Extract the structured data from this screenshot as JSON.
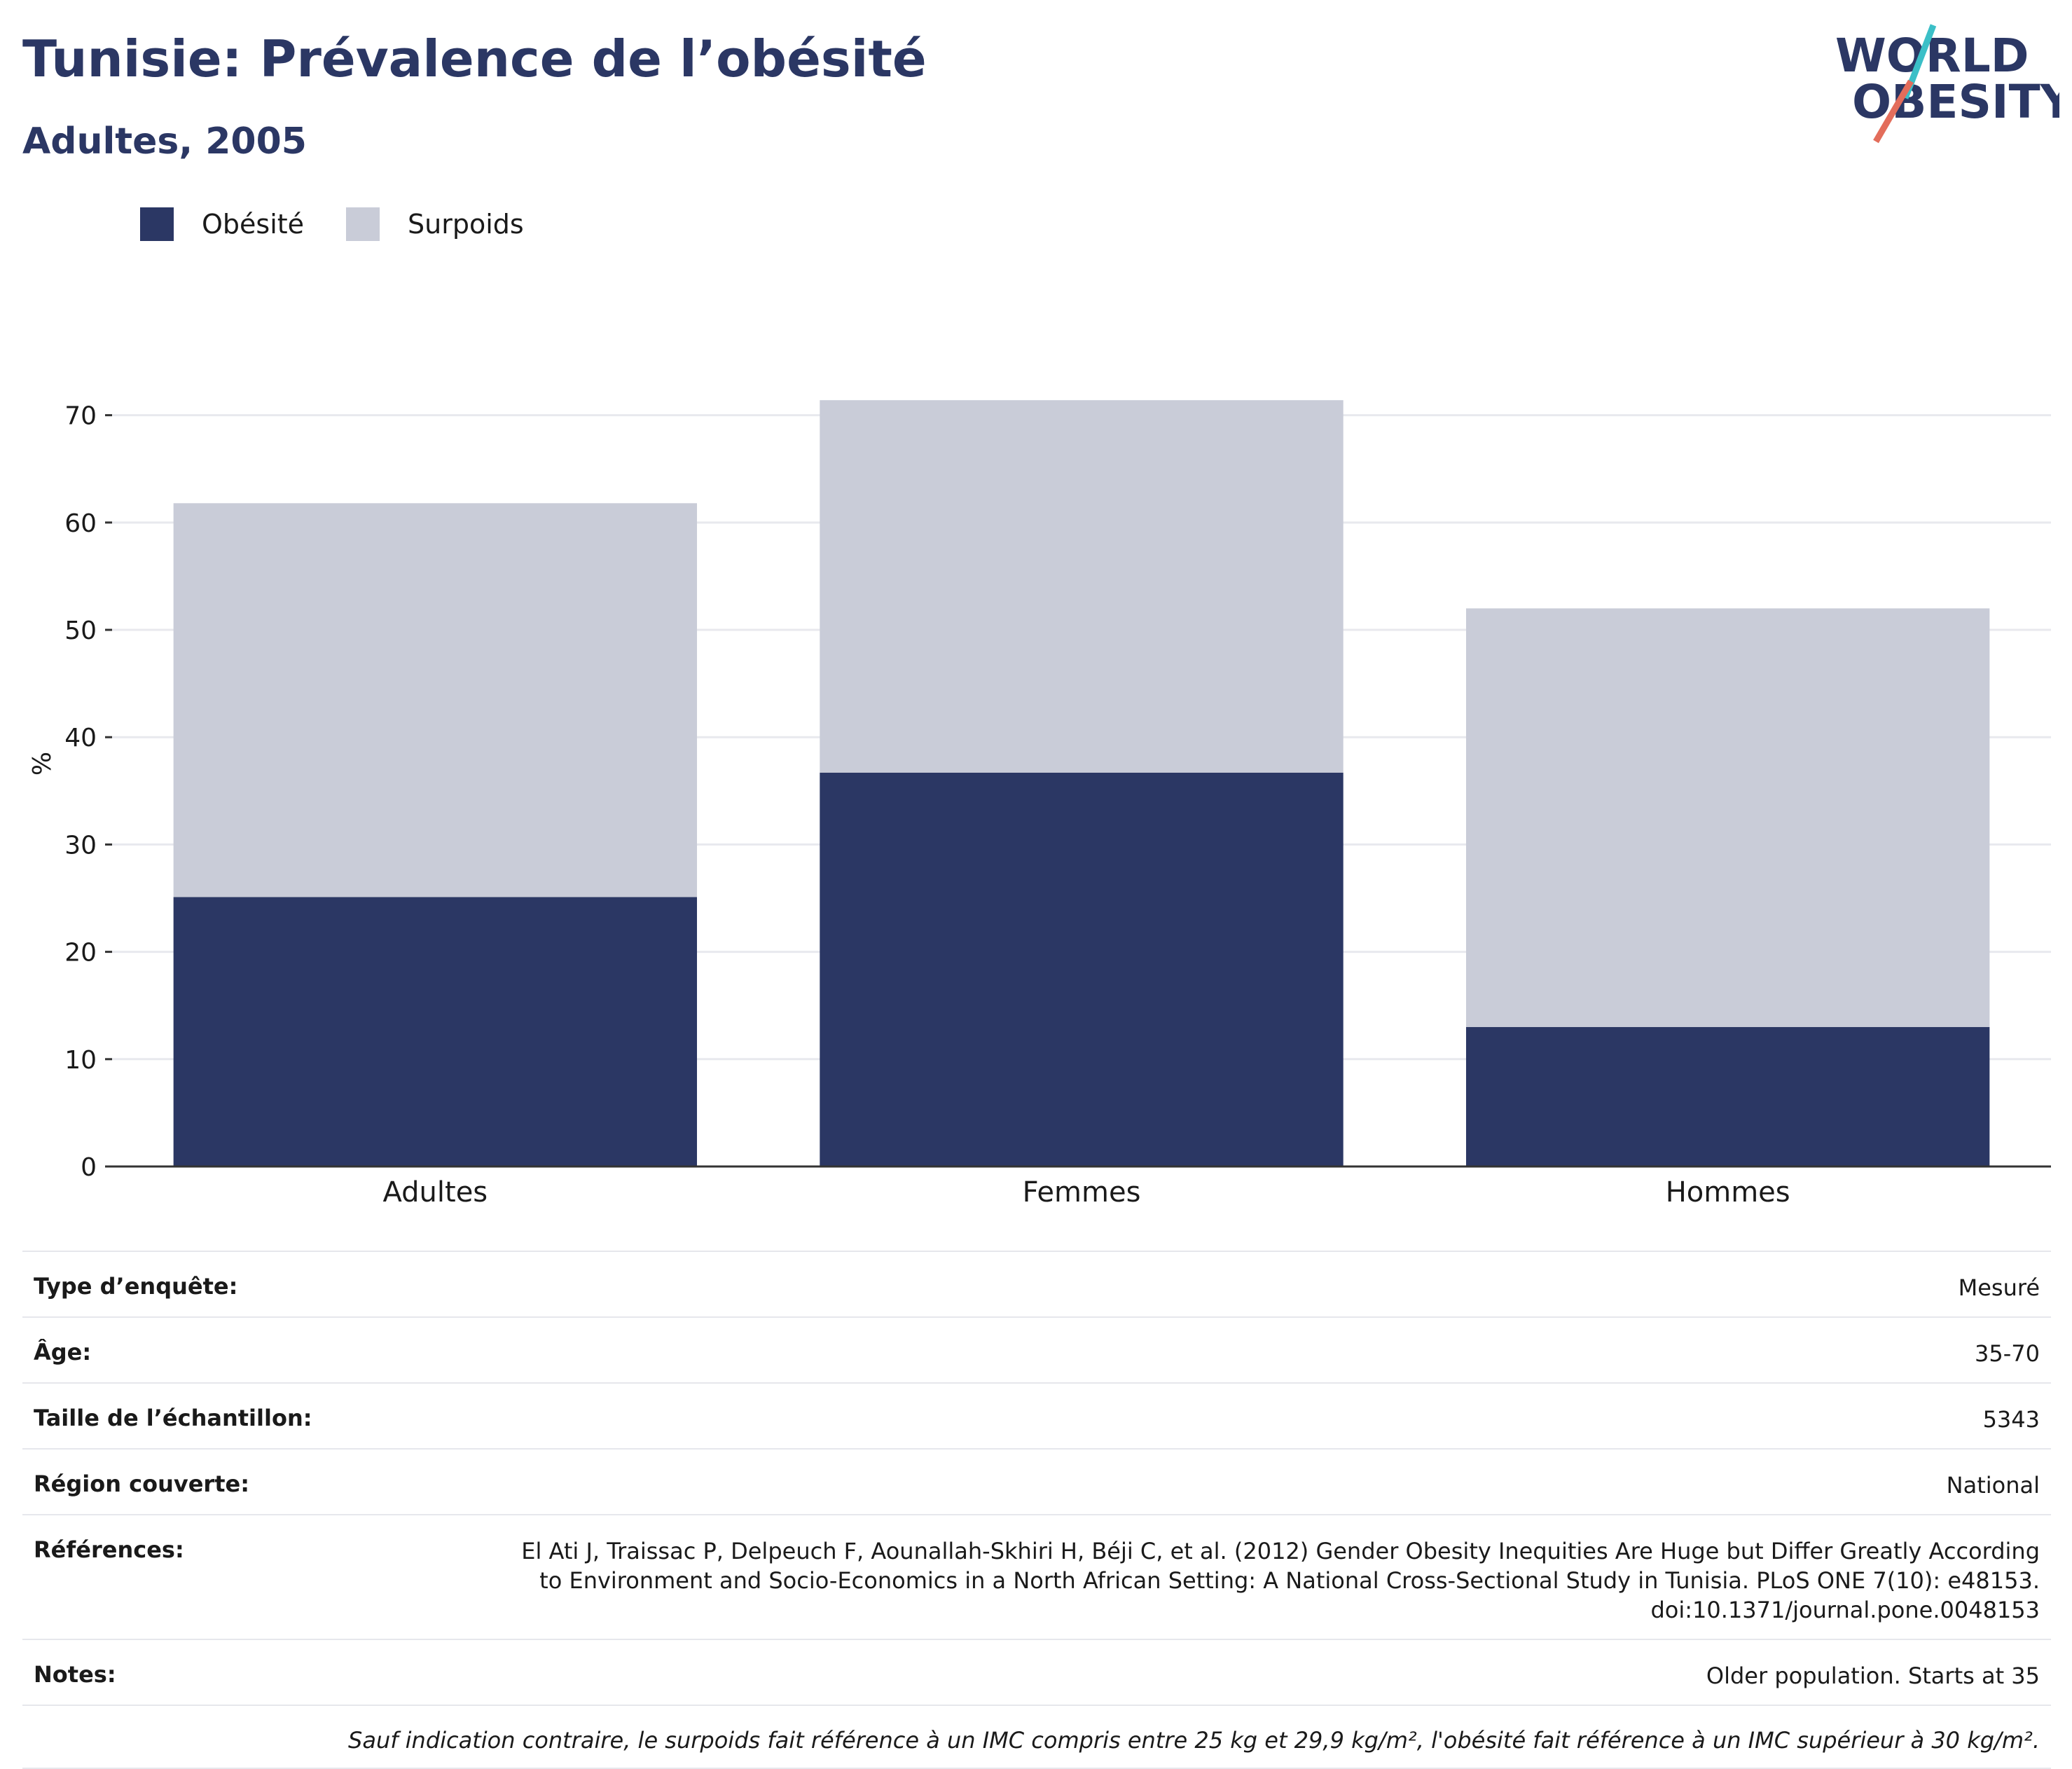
{
  "header": {
    "title": "Tunisie: Prévalence de l’obésité",
    "subtitle": "Adultes, 2005"
  },
  "logo": {
    "line1": "WORLD",
    "line2": "OBESITY"
  },
  "colors": {
    "obesity": "#2b3764",
    "overweight": "#c9ccd8",
    "title": "#2b3764",
    "logo_slash": "#e36d5b",
    "logo_slash_accent": "#3bbfc7"
  },
  "chart_data": {
    "type": "bar",
    "stacked": true,
    "categories": [
      "Adultes",
      "Femmes",
      "Hommes"
    ],
    "series": [
      {
        "name": "Obésité",
        "values": [
          25.1,
          36.7,
          13.0
        ]
      },
      {
        "name": "Surpoids",
        "values": [
          36.7,
          34.7,
          39.0
        ]
      }
    ],
    "ylabel": "%",
    "yticks": [
      0,
      10,
      20,
      30,
      40,
      50,
      60,
      70
    ],
    "ylim": [
      0,
      72
    ],
    "grid": true,
    "legend_position": "top-left"
  },
  "meta": [
    {
      "key": "Type d’enquête:",
      "value": "Mesuré"
    },
    {
      "key": "Âge:",
      "value": "35-70"
    },
    {
      "key": "Taille de l’échantillon:",
      "value": "5343"
    },
    {
      "key": "Région couverte:",
      "value": "National"
    },
    {
      "key": "Références:",
      "value": "El Ati J, Traissac P, Delpeuch F, Aounallah-Skhiri H, Béji C, et al. (2012) Gender Obesity Inequities Are Huge but Differ Greatly According to Environment and Socio-Economics in a North African Setting: A National Cross-Sectional Study in Tunisia. PLoS ONE 7(10): e48153. doi:10.1371/journal.pone.0048153"
    },
    {
      "key": "Notes:",
      "value": "Older population. Starts at 35"
    }
  ],
  "footnote": "Sauf indication contraire, le surpoids fait référence à un IMC compris entre 25 kg et 29,9 kg/m², l'obésité fait référence à un IMC supérieur à 30 kg/m²."
}
